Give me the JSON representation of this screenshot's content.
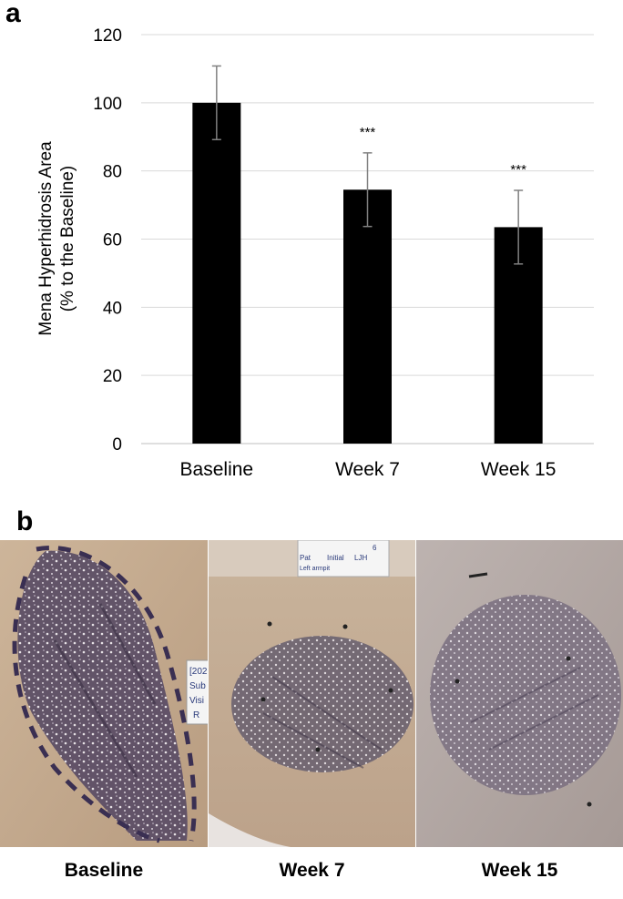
{
  "panel_a_label": "a",
  "panel_b_label": "b",
  "chart_data": {
    "type": "bar",
    "categories": [
      "Baseline",
      "Week 7",
      "Week 15"
    ],
    "values": [
      100,
      74.5,
      63.5
    ],
    "error": [
      10.8,
      10.8,
      10.8
    ],
    "annotations": [
      "",
      "***",
      "***"
    ],
    "ylabel_line1": "Mena Hyperhidrosis Area",
    "ylabel_line2": "(% to the Baseline)",
    "ylim": [
      0,
      120
    ],
    "yticks": [
      0,
      20,
      40,
      60,
      80,
      100,
      120
    ],
    "grid": true,
    "bar_color": "#000000",
    "errorbar_color": "#808080"
  },
  "photos": [
    {
      "caption": "Baseline",
      "marker": "Deep purple starch-iodine staining outlined with dashed marker",
      "tag_lines": [
        "[202",
        "Sub",
        "Visi",
        "R"
      ]
    },
    {
      "caption": "Week 7",
      "tag_lines": [
        "6",
        "Pat",
        "Initial",
        "LJH",
        "Left armpit"
      ]
    },
    {
      "caption": "Week 15"
    }
  ]
}
